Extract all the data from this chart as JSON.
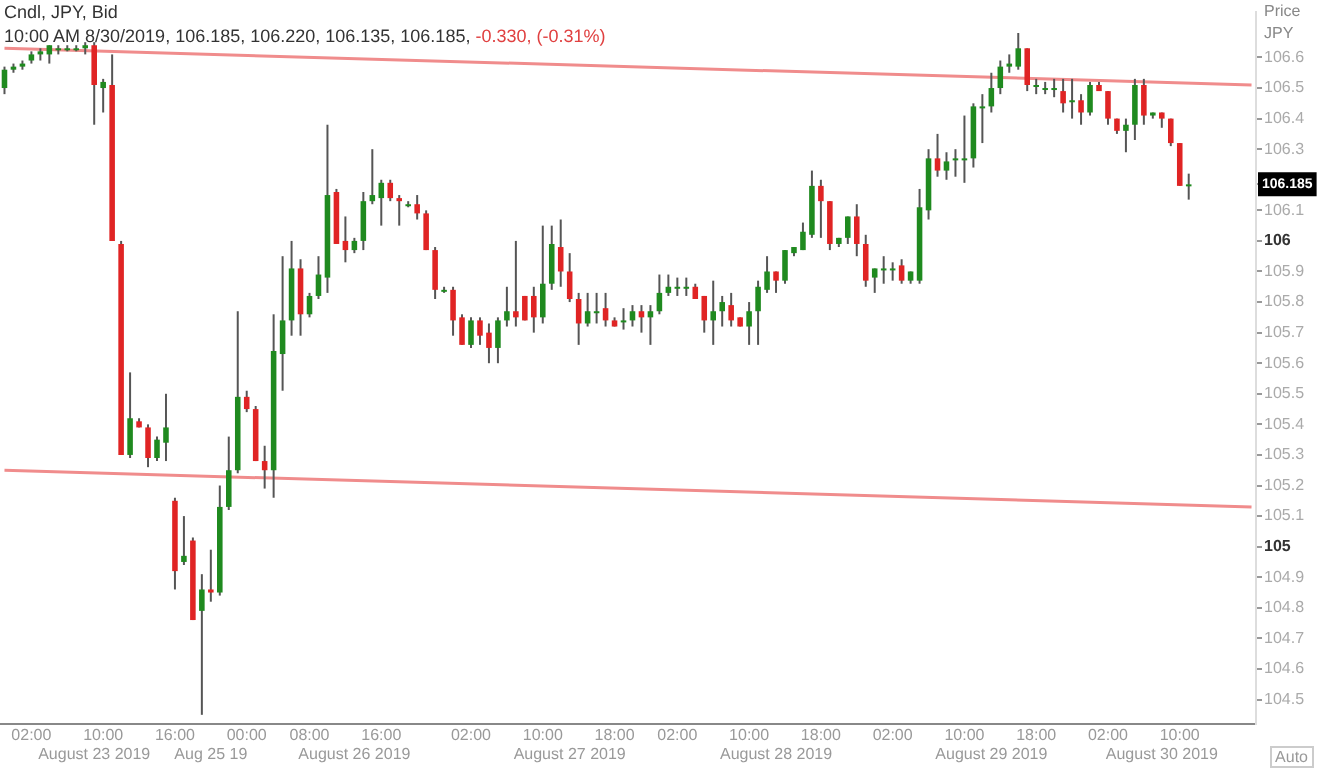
{
  "chart_data": {
    "type": "candlestick",
    "title": "Cndl, JPY, Bid",
    "subtitle": "10:00 AM 8/30/2019, 106.185, 106.220, 106.135, 106.185,",
    "ylabel": "Price JPY",
    "annotations": [
      "-0.330, (-0.31%)",
      "Auto"
    ],
    "categories": [
      null,
      null,
      null,
      "02:00",
      null,
      null,
      null,
      null,
      null,
      null,
      "\nAugust 23 2019",
      "10:00",
      null,
      null,
      null,
      null,
      null,
      null,
      null,
      "16:00",
      null,
      null,
      null,
      "\nAug 25 19",
      null,
      null,
      null,
      "00:00",
      null,
      null,
      null,
      null,
      null,
      null,
      "08:00",
      null,
      null,
      null,
      null,
      "\nAugust 26 2019",
      null,
      null,
      "16:00",
      null,
      null,
      null,
      null,
      null,
      null,
      null,
      null,
      null,
      "02:00",
      null,
      null,
      null,
      null,
      null,
      null,
      null,
      "10:00",
      null,
      null,
      "\nAugust 27 2019",
      null,
      null,
      null,
      null,
      "18:00",
      null,
      null,
      null,
      null,
      null,
      null,
      "02:00",
      null,
      null,
      null,
      null,
      null,
      null,
      null,
      "10:00",
      null,
      null,
      "\nAugust 28 2019",
      null,
      null,
      null,
      null,
      "18:00",
      null,
      null,
      null,
      null,
      null,
      null,
      null,
      "02:00",
      null,
      null,
      null,
      null,
      null,
      null,
      null,
      "10:00",
      null,
      null,
      "\nAugust 29 2019",
      null,
      null,
      null,
      null,
      "18:00",
      null,
      null,
      null,
      null,
      null,
      null,
      null,
      "02:00",
      null,
      null,
      null,
      null,
      null,
      "\nAugust 30 2019",
      null,
      "10:00",
      null,
      null,
      null,
      null,
      null,
      null,
      null,
      null
    ],
    "ohlc": [
      [
        106.5,
        106.57,
        106.48,
        106.56
      ],
      [
        106.56,
        106.58,
        106.55,
        106.57
      ],
      [
        106.57,
        106.59,
        106.56,
        106.58
      ],
      [
        106.59,
        106.62,
        106.58,
        106.61
      ],
      [
        106.61,
        106.63,
        106.59,
        106.62
      ],
      [
        106.61,
        106.64,
        106.58,
        106.64
      ],
      [
        106.63,
        106.64,
        106.61,
        106.63
      ],
      [
        106.63,
        106.64,
        106.62,
        106.63
      ],
      [
        106.63,
        106.64,
        106.62,
        106.63
      ],
      [
        106.63,
        106.65,
        106.61,
        106.64
      ],
      [
        106.64,
        106.65,
        106.38,
        106.51
      ],
      [
        106.5,
        106.53,
        106.42,
        106.52
      ],
      [
        106.51,
        106.61,
        106.0,
        106.0
      ],
      [
        105.99,
        106.0,
        105.3,
        105.3
      ],
      [
        105.3,
        105.57,
        105.29,
        105.42
      ],
      [
        105.41,
        105.42,
        105.39,
        105.39
      ],
      [
        105.39,
        105.4,
        105.26,
        105.29
      ],
      [
        105.29,
        105.36,
        105.28,
        105.35
      ],
      [
        105.34,
        105.5,
        105.28,
        105.39
      ],
      [
        105.15,
        105.16,
        104.86,
        104.92
      ],
      [
        104.95,
        105.1,
        104.94,
        104.97
      ],
      [
        105.02,
        105.03,
        104.76,
        104.76
      ],
      [
        104.79,
        104.91,
        104.45,
        104.86
      ],
      [
        104.86,
        104.99,
        104.82,
        104.85
      ],
      [
        104.85,
        105.2,
        104.84,
        105.13
      ],
      [
        105.13,
        105.36,
        105.12,
        105.25
      ],
      [
        105.25,
        105.77,
        105.24,
        105.49
      ],
      [
        105.49,
        105.51,
        105.44,
        105.45
      ],
      [
        105.45,
        105.46,
        105.28,
        105.28
      ],
      [
        105.28,
        105.33,
        105.19,
        105.25
      ],
      [
        105.25,
        105.76,
        105.16,
        105.64
      ],
      [
        105.63,
        105.95,
        105.51,
        105.74
      ],
      [
        105.74,
        106.0,
        105.69,
        105.91
      ],
      [
        105.91,
        105.94,
        105.69,
        105.76
      ],
      [
        105.76,
        105.83,
        105.75,
        105.82
      ],
      [
        105.82,
        105.95,
        105.81,
        105.89
      ],
      [
        105.88,
        106.38,
        105.83,
        106.15
      ],
      [
        106.16,
        106.17,
        105.99,
        105.99
      ],
      [
        106.0,
        106.08,
        105.93,
        105.97
      ],
      [
        105.97,
        106.01,
        105.96,
        106.0
      ],
      [
        106.0,
        106.16,
        105.97,
        106.13
      ],
      [
        106.13,
        106.3,
        106.12,
        106.15
      ],
      [
        106.14,
        106.2,
        106.05,
        106.19
      ],
      [
        106.19,
        106.2,
        106.13,
        106.14
      ],
      [
        106.14,
        106.15,
        106.05,
        106.13
      ],
      [
        106.12,
        106.13,
        106.11,
        106.12
      ],
      [
        106.12,
        106.15,
        106.07,
        106.09
      ],
      [
        106.09,
        106.1,
        105.97,
        105.97
      ],
      [
        105.97,
        105.98,
        105.81,
        105.84
      ],
      [
        105.84,
        105.85,
        105.83,
        105.84
      ],
      [
        105.84,
        105.85,
        105.69,
        105.74
      ],
      [
        105.75,
        105.76,
        105.66,
        105.66
      ],
      [
        105.66,
        105.75,
        105.65,
        105.74
      ],
      [
        105.74,
        105.75,
        105.66,
        105.69
      ],
      [
        105.7,
        105.73,
        105.6,
        105.65
      ],
      [
        105.65,
        105.75,
        105.6,
        105.74
      ],
      [
        105.74,
        105.85,
        105.72,
        105.77
      ],
      [
        105.77,
        106.0,
        105.72,
        105.75
      ],
      [
        105.82,
        105.82,
        105.74,
        105.74
      ],
      [
        105.82,
        105.85,
        105.7,
        105.75
      ],
      [
        105.75,
        106.05,
        105.73,
        105.86
      ],
      [
        105.86,
        106.05,
        105.84,
        105.99
      ],
      [
        105.98,
        106.07,
        105.85,
        105.9
      ],
      [
        105.9,
        105.96,
        105.8,
        105.81
      ],
      [
        105.81,
        105.83,
        105.66,
        105.73
      ],
      [
        105.73,
        105.83,
        105.72,
        105.77
      ],
      [
        105.77,
        105.83,
        105.73,
        105.77
      ],
      [
        105.78,
        105.83,
        105.72,
        105.74
      ],
      [
        105.74,
        105.75,
        105.72,
        105.72
      ],
      [
        105.74,
        105.78,
        105.71,
        105.74
      ],
      [
        105.74,
        105.79,
        105.72,
        105.77
      ],
      [
        105.77,
        105.79,
        105.7,
        105.75
      ],
      [
        105.75,
        105.79,
        105.66,
        105.77
      ],
      [
        105.77,
        105.89,
        105.76,
        105.83
      ],
      [
        105.83,
        105.89,
        105.82,
        105.85
      ],
      [
        105.85,
        105.88,
        105.82,
        105.85
      ],
      [
        105.85,
        105.88,
        105.82,
        105.85
      ],
      [
        105.85,
        105.86,
        105.81,
        105.81
      ],
      [
        105.82,
        105.82,
        105.7,
        105.74
      ],
      [
        105.74,
        105.87,
        105.66,
        105.77
      ],
      [
        105.77,
        105.82,
        105.72,
        105.8
      ],
      [
        105.79,
        105.83,
        105.72,
        105.74
      ],
      [
        105.75,
        105.75,
        105.72,
        105.72
      ],
      [
        105.72,
        105.8,
        105.66,
        105.77
      ],
      [
        105.77,
        105.87,
        105.66,
        105.85
      ],
      [
        105.84,
        105.95,
        105.83,
        105.9
      ],
      [
        105.9,
        105.9,
        105.83,
        105.87
      ],
      [
        105.87,
        105.97,
        105.86,
        105.97
      ],
      [
        105.96,
        105.98,
        105.95,
        105.98
      ],
      [
        105.97,
        106.06,
        105.97,
        106.03
      ],
      [
        106.02,
        106.23,
        106.01,
        106.18
      ],
      [
        106.18,
        106.2,
        106.01,
        106.13
      ],
      [
        106.13,
        106.13,
        105.97,
        105.99
      ],
      [
        105.99,
        106.01,
        105.98,
        106.01
      ],
      [
        106.01,
        106.08,
        105.99,
        106.08
      ],
      [
        106.08,
        106.12,
        105.95,
        105.99
      ],
      [
        105.99,
        106.02,
        105.85,
        105.87
      ],
      [
        105.88,
        105.91,
        105.83,
        105.91
      ],
      [
        105.91,
        105.95,
        105.86,
        105.91
      ],
      [
        105.91,
        105.93,
        105.87,
        105.91
      ],
      [
        105.92,
        105.94,
        105.86,
        105.87
      ],
      [
        105.87,
        105.9,
        105.86,
        105.9
      ],
      [
        105.87,
        106.17,
        105.86,
        106.11
      ],
      [
        106.1,
        106.3,
        106.07,
        106.27
      ],
      [
        106.27,
        106.35,
        106.21,
        106.23
      ],
      [
        106.23,
        106.29,
        106.2,
        106.26
      ],
      [
        106.27,
        106.3,
        106.21,
        106.27
      ],
      [
        106.27,
        106.41,
        106.19,
        106.27
      ],
      [
        106.27,
        106.45,
        106.24,
        106.44
      ],
      [
        106.44,
        106.48,
        106.32,
        106.44
      ],
      [
        106.44,
        106.55,
        106.42,
        106.5
      ],
      [
        106.5,
        106.59,
        106.48,
        106.57
      ],
      [
        106.57,
        106.61,
        106.55,
        106.58
      ],
      [
        106.57,
        106.68,
        106.56,
        106.63
      ],
      [
        106.63,
        106.63,
        106.49,
        106.51
      ],
      [
        106.51,
        106.53,
        106.48,
        106.51
      ],
      [
        106.5,
        106.52,
        106.48,
        106.5
      ],
      [
        106.5,
        106.53,
        106.47,
        106.5
      ],
      [
        106.49,
        106.53,
        106.42,
        106.45
      ],
      [
        106.46,
        106.53,
        106.4,
        106.46
      ],
      [
        106.46,
        106.48,
        106.38,
        106.42
      ],
      [
        106.42,
        106.52,
        106.41,
        106.51
      ],
      [
        106.51,
        106.52,
        106.49,
        106.49
      ],
      [
        106.49,
        106.49,
        106.38,
        106.4
      ],
      [
        106.4,
        106.4,
        106.35,
        106.36
      ],
      [
        106.36,
        106.4,
        106.29,
        106.38
      ],
      [
        106.38,
        106.53,
        106.33,
        106.51
      ],
      [
        106.51,
        106.53,
        106.38,
        106.41
      ],
      [
        106.41,
        106.42,
        106.4,
        106.42
      ],
      [
        106.42,
        106.42,
        106.37,
        106.4
      ],
      [
        106.4,
        106.4,
        106.31,
        106.32
      ],
      [
        106.32,
        106.32,
        106.18,
        106.18
      ],
      [
        106.185,
        106.22,
        106.135,
        106.185
      ],
      null,
      null,
      null,
      null,
      null,
      null,
      null
    ],
    "series": [
      {
        "type": "line",
        "color": "#f08c8c",
        "values": [
          106.63,
          null,
          null,
          null,
          null,
          null,
          null,
          null,
          null,
          null,
          null,
          null,
          null,
          null,
          null,
          null,
          null,
          null,
          null,
          null,
          null,
          null,
          null,
          null,
          null,
          null,
          null,
          null,
          null,
          null,
          null,
          null,
          null,
          null,
          null,
          null,
          null,
          null,
          null,
          null,
          null,
          null,
          null,
          null,
          null,
          null,
          null,
          null,
          null,
          null,
          null,
          null,
          null,
          null,
          null,
          null,
          null,
          null,
          null,
          null,
          null,
          null,
          null,
          null,
          null,
          null,
          null,
          null,
          null,
          null,
          null,
          null,
          null,
          null,
          null,
          null,
          null,
          null,
          null,
          null,
          null,
          null,
          null,
          null,
          null,
          null,
          null,
          null,
          null,
          null,
          null,
          null,
          null,
          null,
          null,
          null,
          null,
          null,
          null,
          null,
          null,
          null,
          null,
          null,
          null,
          null,
          null,
          null,
          null,
          null,
          null,
          null,
          null,
          null,
          null,
          null,
          null,
          null,
          null,
          null,
          null,
          null,
          null,
          null,
          null,
          null,
          null,
          null,
          null,
          null,
          null,
          null,
          null,
          null,
          null,
          null,
          null,
          null,
          null,
          106.51
        ]
      },
      {
        "type": "line",
        "color": "#f08c8c",
        "values": [
          105.25,
          null,
          null,
          null,
          null,
          null,
          null,
          null,
          null,
          null,
          null,
          null,
          null,
          null,
          null,
          null,
          null,
          null,
          null,
          null,
          null,
          null,
          null,
          null,
          null,
          null,
          null,
          null,
          null,
          null,
          null,
          null,
          null,
          null,
          null,
          null,
          null,
          null,
          null,
          null,
          null,
          null,
          null,
          null,
          null,
          null,
          null,
          null,
          null,
          null,
          null,
          null,
          null,
          null,
          null,
          null,
          null,
          null,
          null,
          null,
          null,
          null,
          null,
          null,
          null,
          null,
          null,
          null,
          null,
          null,
          null,
          null,
          null,
          null,
          null,
          null,
          null,
          null,
          null,
          null,
          null,
          null,
          null,
          null,
          null,
          null,
          null,
          null,
          null,
          null,
          null,
          null,
          null,
          null,
          null,
          null,
          null,
          null,
          null,
          null,
          null,
          null,
          null,
          null,
          null,
          null,
          null,
          null,
          null,
          null,
          null,
          null,
          null,
          null,
          null,
          null,
          null,
          null,
          null,
          null,
          null,
          null,
          null,
          null,
          null,
          null,
          null,
          null,
          null,
          null,
          null,
          null,
          null,
          null,
          null,
          null,
          null,
          null,
          null,
          105.13
        ]
      }
    ],
    "ylim": [
      104.42,
      106.75
    ],
    "yticks": [
      104.5,
      104.6,
      104.7,
      104.8,
      104.9,
      105,
      105.1,
      105.2,
      105.3,
      105.4,
      105.5,
      105.6,
      105.7,
      105.8,
      105.9,
      106,
      106.1,
      {
        "value": 106.185,
        "label": "106.185"
      },
      106.3,
      106.4,
      106.5,
      106.6
    ]
  }
}
